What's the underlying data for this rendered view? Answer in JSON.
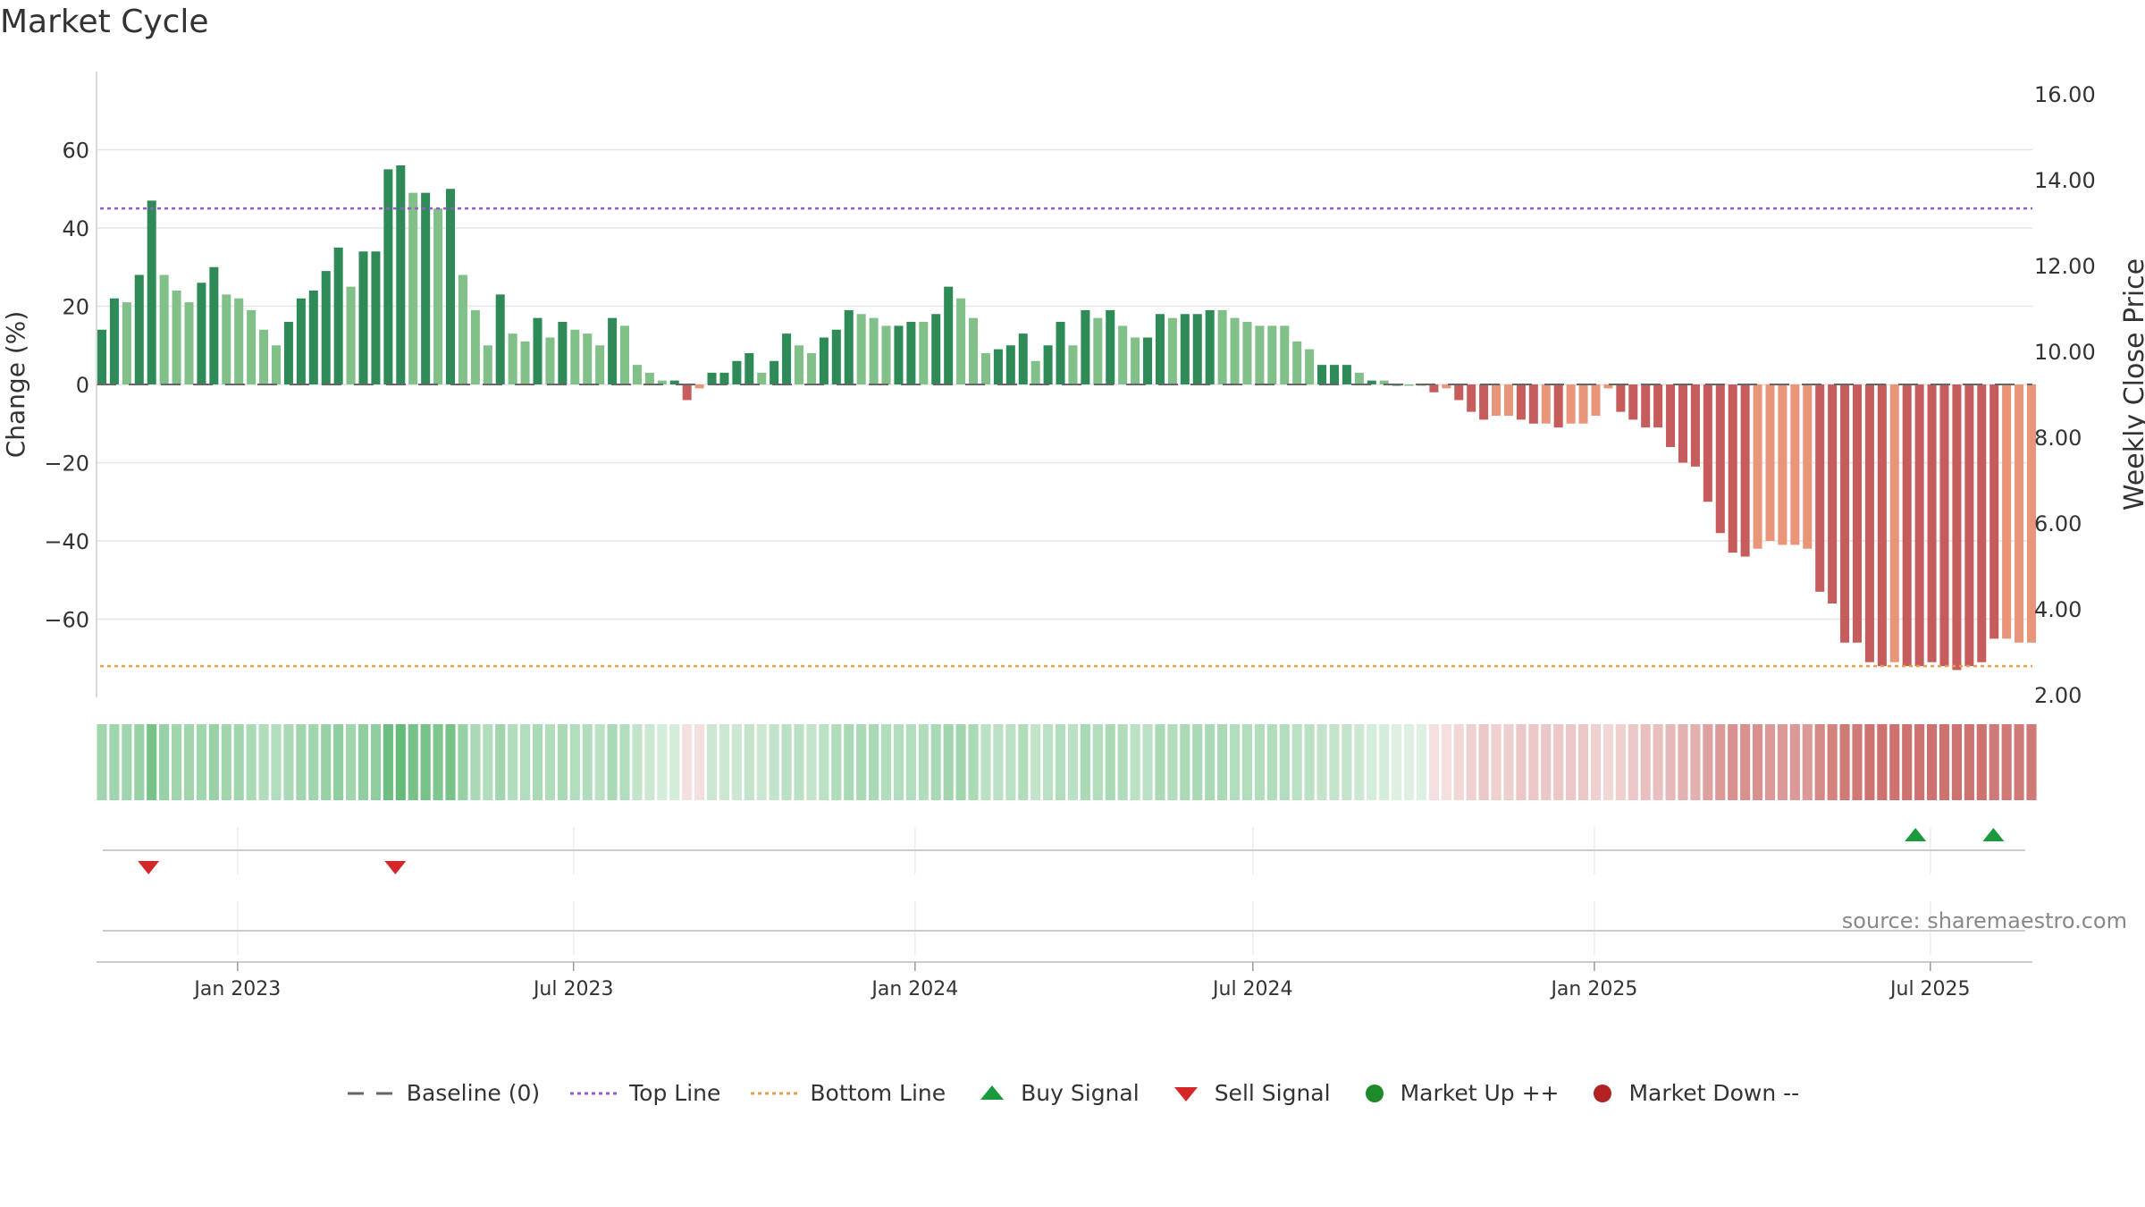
{
  "title": "Market Cycle",
  "source": "source: sharemaestro.com",
  "colors": {
    "up_strong": "#2e8b57",
    "up_weak": "#82c08a",
    "down_strong": "#c65c5c",
    "down_weak": "#e8957a",
    "top_line": "#9b59d0",
    "bottom_line": "#e8a04d",
    "buy": "#1a9a3c",
    "sell": "#d62728",
    "market_up": "#1f8a2a",
    "market_down": "#b22222",
    "baseline": "#666666"
  },
  "legend": [
    {
      "label": "Baseline (0)",
      "icon": "dash-line-icon"
    },
    {
      "label": "Top Line",
      "icon": "dotted-purple-line-icon"
    },
    {
      "label": "Bottom Line",
      "icon": "dotted-orange-line-icon"
    },
    {
      "label": "Buy Signal",
      "icon": "triangle-up-icon"
    },
    {
      "label": "Sell Signal",
      "icon": "triangle-down-icon"
    },
    {
      "label": "Market Up ++",
      "icon": "green-dot-icon"
    },
    {
      "label": "Market Down --",
      "icon": "red-dot-icon"
    }
  ],
  "chart_data": {
    "type": "bar",
    "title": "Market Cycle",
    "ylabel": "Change (%)",
    "y2label": "Weekly Close Price",
    "ylim": [
      -80,
      80
    ],
    "y_ticks": [
      60,
      40,
      20,
      0,
      -20,
      -40,
      -60
    ],
    "y_tick_labels": [
      "60",
      "40",
      "20",
      "0",
      "−20",
      "−40",
      "−60"
    ],
    "y2lim": [
      2.0,
      16.0
    ],
    "y2_ticks": [
      16.0,
      14.0,
      12.0,
      10.0,
      8.0,
      6.0,
      4.0,
      2.0
    ],
    "y2_tick_labels": [
      "16.00",
      "14.00",
      "12.00",
      "10.00",
      "8.00",
      "6.00",
      "4.00",
      "2.00"
    ],
    "x_range": [
      "2022-10-17",
      "2025-08-25"
    ],
    "x_ticks": [
      "2023-01-01",
      "2023-07-01",
      "2024-01-01",
      "2024-07-01",
      "2025-01-01",
      "2025-07-01"
    ],
    "x_tick_labels": [
      "Jan 2023",
      "Jul 2023",
      "Jan 2024",
      "Jul 2024",
      "Jan 2025",
      "Jul 2025"
    ],
    "top_line": 45,
    "bottom_line": -72,
    "grid": true,
    "values": [
      14,
      22,
      21,
      28,
      47,
      28,
      24,
      21,
      26,
      30,
      23,
      22,
      19,
      14,
      10,
      16,
      22,
      24,
      29,
      35,
      25,
      34,
      34,
      55,
      56,
      49,
      49,
      45,
      50,
      28,
      19,
      10,
      23,
      13,
      11,
      17,
      12,
      16,
      14,
      13,
      10,
      17,
      15,
      5,
      3,
      1,
      1,
      -4,
      -1,
      3,
      3,
      6,
      8,
      3,
      6,
      13,
      10,
      8,
      12,
      14,
      19,
      18,
      17,
      15,
      15,
      16,
      16,
      18,
      25,
      22,
      17,
      8,
      9,
      10,
      13,
      6,
      10,
      16,
      10,
      19,
      17,
      19,
      15,
      12,
      12,
      18,
      17,
      18,
      18,
      19,
      19,
      17,
      16,
      15,
      15,
      15,
      11,
      9,
      5,
      5,
      5,
      3,
      1,
      1,
      0,
      0,
      0,
      -2,
      -1,
      -4,
      -7,
      -9,
      -8,
      -8,
      -9,
      -10,
      -10,
      -11,
      -10,
      -10,
      -8,
      -1,
      -7,
      -9,
      -11,
      -11,
      -16,
      -20,
      -21,
      -30,
      -38,
      -43,
      -44,
      -42,
      -40,
      -41,
      -41,
      -42,
      -53,
      -56,
      -66,
      -66,
      -71,
      -72,
      -71,
      -72,
      -72,
      -71,
      -72,
      -73,
      -72,
      -71,
      -65,
      -65,
      -66,
      -66
    ],
    "styles": [
      1,
      1,
      0,
      1,
      1,
      0,
      0,
      0,
      1,
      1,
      0,
      0,
      0,
      0,
      0,
      1,
      1,
      1,
      1,
      1,
      0,
      1,
      1,
      1,
      1,
      0,
      1,
      0,
      1,
      0,
      0,
      0,
      1,
      0,
      0,
      1,
      0,
      1,
      0,
      0,
      0,
      1,
      0,
      0,
      0,
      0,
      1,
      1,
      0,
      1,
      1,
      1,
      1,
      0,
      1,
      1,
      0,
      0,
      1,
      1,
      1,
      0,
      0,
      0,
      1,
      1,
      0,
      1,
      1,
      0,
      0,
      0,
      1,
      1,
      1,
      0,
      1,
      1,
      0,
      1,
      0,
      1,
      0,
      0,
      1,
      1,
      0,
      1,
      1,
      1,
      0,
      0,
      0,
      0,
      0,
      0,
      0,
      0,
      1,
      1,
      1,
      0,
      1,
      0,
      1,
      0,
      0,
      1,
      0,
      1,
      1,
      1,
      0,
      0,
      1,
      1,
      0,
      1,
      0,
      0,
      0,
      0,
      1,
      1,
      1,
      1,
      1,
      1,
      1,
      1,
      1,
      1,
      1,
      0,
      0,
      0,
      0,
      0,
      1,
      1,
      1,
      1,
      1,
      1,
      0,
      1,
      1,
      1,
      1,
      1,
      1,
      1,
      1,
      0,
      0,
      0,
      1,
      0
    ],
    "heat_strength": [
      0.55,
      0.55,
      0.55,
      0.6,
      0.8,
      0.6,
      0.55,
      0.55,
      0.55,
      0.6,
      0.55,
      0.55,
      0.5,
      0.45,
      0.45,
      0.5,
      0.55,
      0.55,
      0.6,
      0.65,
      0.55,
      0.65,
      0.65,
      0.85,
      0.9,
      0.8,
      0.8,
      0.75,
      0.8,
      0.6,
      0.5,
      0.45,
      0.55,
      0.45,
      0.45,
      0.5,
      0.45,
      0.5,
      0.45,
      0.45,
      0.4,
      0.5,
      0.45,
      0.35,
      0.3,
      0.25,
      0.25,
      0.2,
      0.2,
      0.3,
      0.3,
      0.3,
      0.35,
      0.3,
      0.35,
      0.4,
      0.4,
      0.35,
      0.4,
      0.45,
      0.5,
      0.5,
      0.5,
      0.45,
      0.45,
      0.45,
      0.45,
      0.5,
      0.55,
      0.55,
      0.5,
      0.4,
      0.4,
      0.4,
      0.45,
      0.35,
      0.4,
      0.45,
      0.4,
      0.5,
      0.45,
      0.5,
      0.45,
      0.4,
      0.4,
      0.5,
      0.45,
      0.5,
      0.5,
      0.5,
      0.5,
      0.45,
      0.45,
      0.45,
      0.45,
      0.45,
      0.4,
      0.4,
      0.35,
      0.35,
      0.35,
      0.3,
      0.25,
      0.25,
      0.2,
      0.2,
      0.2,
      0.2,
      0.2,
      0.25,
      0.3,
      0.35,
      0.3,
      0.3,
      0.35,
      0.35,
      0.35,
      0.35,
      0.35,
      0.35,
      0.3,
      0.25,
      0.3,
      0.35,
      0.4,
      0.4,
      0.45,
      0.5,
      0.5,
      0.6,
      0.65,
      0.7,
      0.7,
      0.7,
      0.65,
      0.65,
      0.65,
      0.65,
      0.75,
      0.8,
      0.85,
      0.85,
      0.9,
      0.9,
      0.9,
      0.9,
      0.9,
      0.9,
      0.9,
      0.9,
      0.9,
      0.9,
      0.85,
      0.85,
      0.85,
      0.85
    ],
    "buy_signals": [
      "2025-06-23",
      "2025-08-04"
    ],
    "sell_signals": [
      "2022-11-14",
      "2023-03-27"
    ],
    "market_up": [],
    "market_down": []
  }
}
